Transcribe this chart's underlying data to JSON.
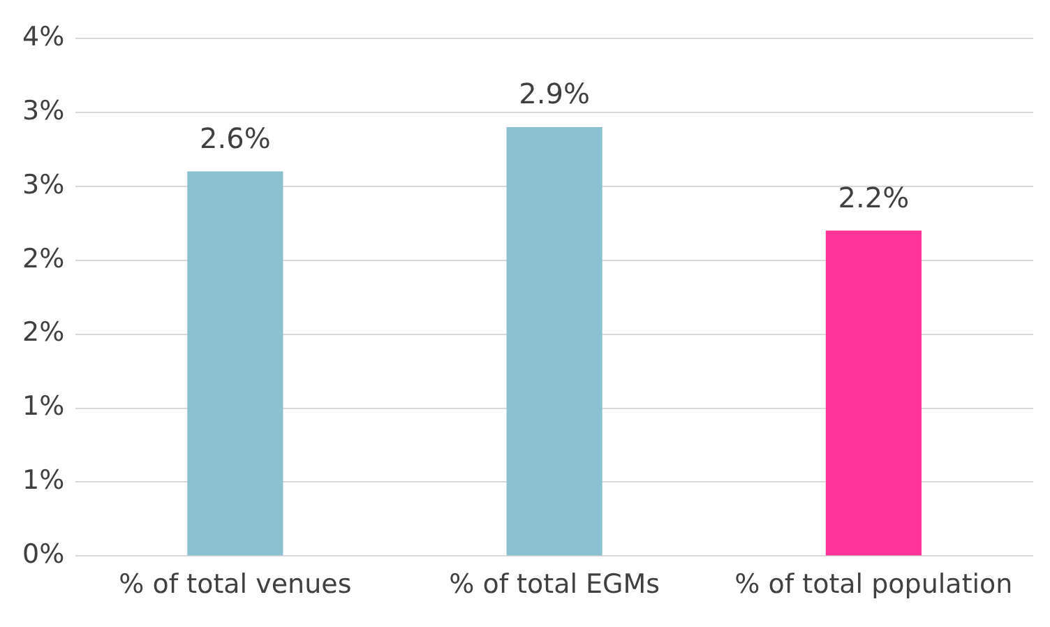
{
  "chart_data": {
    "type": "bar",
    "categories": [
      "% of total venues",
      "% of total EGMs",
      "% of total population"
    ],
    "values": [
      2.6,
      2.9,
      2.2
    ],
    "colors": [
      "#8bc0d0",
      "#8bc0d0",
      "#ff3399"
    ],
    "value_labels": [
      "2.6%",
      "2.9%",
      "2.2%"
    ],
    "ylim": [
      0,
      3.5
    ],
    "yticks": [
      {
        "value": 0,
        "label": "0%"
      },
      {
        "value": 0.5,
        "label": "1%"
      },
      {
        "value": 1,
        "label": "1%"
      },
      {
        "value": 1.5,
        "label": "2%"
      },
      {
        "value": 2,
        "label": "2%"
      },
      {
        "value": 2.5,
        "label": "3%"
      },
      {
        "value": 3,
        "label": "3%"
      },
      {
        "value": 3.5,
        "label": "4%"
      }
    ],
    "grid": "y",
    "legend": false
  }
}
